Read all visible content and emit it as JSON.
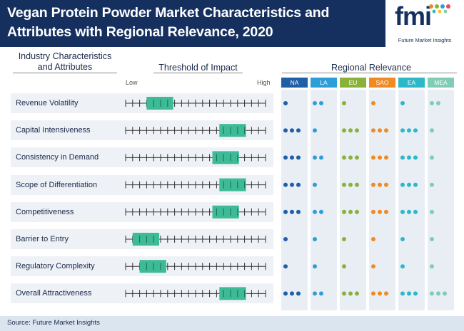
{
  "header": {
    "title": "Vegan Protein Powder Market Characteristics and Attributes with Regional Relevance, 2020",
    "logo_text": "fmi",
    "logo_tagline": "Future Market Insights"
  },
  "columns": {
    "characteristics": "Industry Characteristics and Attributes",
    "threshold": "Threshold of Impact",
    "regional": "Regional Relevance"
  },
  "scale": {
    "low_label": "Low",
    "high_label": "High",
    "ticks": 20
  },
  "regions": [
    {
      "code": "NA",
      "color": "#1f5fa8"
    },
    {
      "code": "LA",
      "color": "#2d9fd8"
    },
    {
      "code": "EU",
      "color": "#8ab23a"
    },
    {
      "code": "SAO",
      "color": "#f08a24"
    },
    {
      "code": "EA",
      "color": "#2bb8c8"
    },
    {
      "code": "MEA",
      "color": "#7fcdb5"
    }
  ],
  "rows": [
    {
      "label": "Revenue Volatility",
      "impact_start": 0.15,
      "impact_end": 0.34,
      "relevance": [
        1,
        2,
        1,
        1,
        1,
        2
      ]
    },
    {
      "label": "Capital Intensiveness",
      "impact_start": 0.67,
      "impact_end": 0.86,
      "relevance": [
        3,
        1,
        3,
        3,
        3,
        1
      ]
    },
    {
      "label": "Consistency in Demand",
      "impact_start": 0.62,
      "impact_end": 0.81,
      "relevance": [
        3,
        2,
        3,
        3,
        3,
        1
      ]
    },
    {
      "label": "Scope of Differentiation",
      "impact_start": 0.67,
      "impact_end": 0.86,
      "relevance": [
        3,
        1,
        3,
        3,
        3,
        1
      ]
    },
    {
      "label": "Competitiveness",
      "impact_start": 0.62,
      "impact_end": 0.81,
      "relevance": [
        3,
        2,
        3,
        3,
        3,
        1
      ]
    },
    {
      "label": "Barrier to Entry",
      "impact_start": 0.05,
      "impact_end": 0.24,
      "relevance": [
        1,
        1,
        1,
        1,
        1,
        1
      ]
    },
    {
      "label": "Regulatory Complexity",
      "impact_start": 0.1,
      "impact_end": 0.29,
      "relevance": [
        1,
        1,
        1,
        1,
        1,
        1
      ]
    },
    {
      "label": "Overall Attractiveness",
      "impact_start": 0.67,
      "impact_end": 0.86,
      "relevance": [
        3,
        2,
        3,
        3,
        3,
        3
      ]
    }
  ],
  "colors": {
    "impact_bar": "#3dba96",
    "header_bg": "#15305f"
  },
  "footer": {
    "source": "Source: Future Market Insights"
  }
}
